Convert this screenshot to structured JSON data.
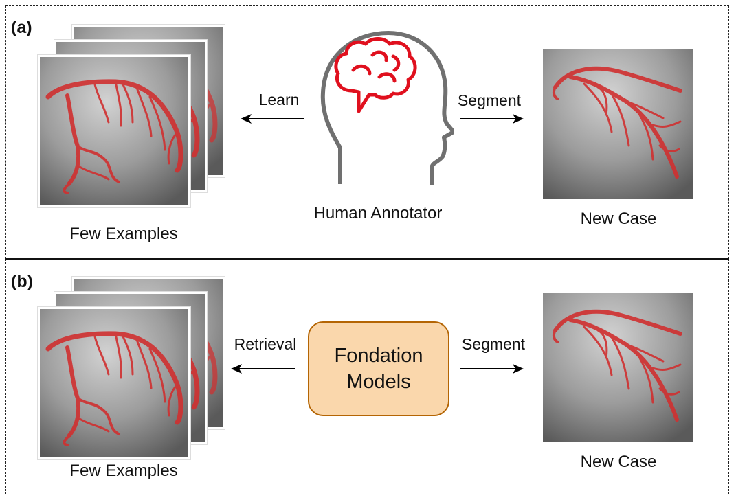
{
  "panel_a": {
    "label": "(a)",
    "examples_caption": "Few Examples",
    "learn_label": "Learn",
    "segment_label": "Segment",
    "annotator_caption": "Human Annotator",
    "new_case_caption": "New Case"
  },
  "panel_b": {
    "label": "(b)",
    "examples_caption": "Few Examples",
    "retrieval_label": "Retrieval",
    "segment_label": "Segment",
    "model_line1": "Fondation",
    "model_line2": "Models",
    "new_case_caption": "New Case"
  },
  "colors": {
    "vessel": "#d03030",
    "brain": "#e0101e",
    "head_outline": "#707070",
    "model_fill": "#fad7ac",
    "model_border": "#b46504"
  },
  "icons": [
    "brain-icon",
    "human-head-icon"
  ]
}
